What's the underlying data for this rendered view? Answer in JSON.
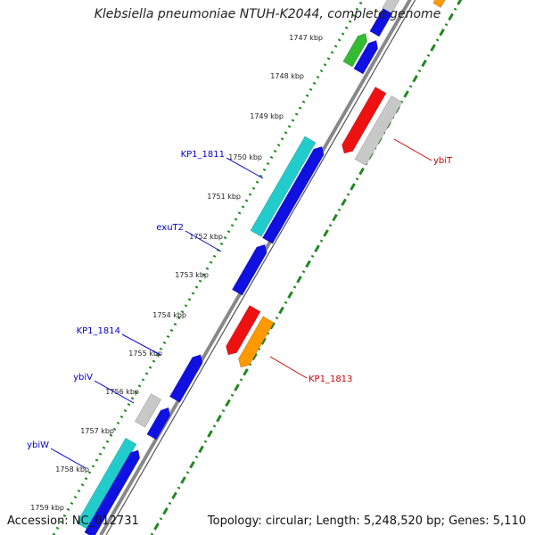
{
  "title": "Klebsiella pneumoniae NTUH-K2044, complete genome",
  "accession": "Accession: NC_012731",
  "summary": "Topology: circular; Length: 5,248,520 bp; Genes: 5,110",
  "kbp_ticks": [
    {
      "label": "1747 kbp"
    },
    {
      "label": "1748 kbp"
    },
    {
      "label": "1749 kbp"
    },
    {
      "label": "1750 kbp"
    },
    {
      "label": "1751 kbp"
    },
    {
      "label": "1752 kbp"
    },
    {
      "label": "1753 kbp"
    },
    {
      "label": "1754 kbp"
    },
    {
      "label": "1755 kbp"
    },
    {
      "label": "1756 kbp"
    },
    {
      "label": "1757 kbp"
    },
    {
      "label": "1758 kbp"
    },
    {
      "label": "1759 kbp"
    }
  ],
  "gene_labels": [
    {
      "label": "KP1_1811",
      "color": "#0000cc"
    },
    {
      "label": "exuT2",
      "color": "#0000cc"
    },
    {
      "label": "KP1_1814",
      "color": "#0000cc"
    },
    {
      "label": "ybiV",
      "color": "#0000cc"
    },
    {
      "label": "ybiW",
      "color": "#0000cc"
    },
    {
      "label": "ybiT",
      "color": "#cc0000"
    },
    {
      "label": "KP1_1813",
      "color": "#cc0000"
    }
  ],
  "colors": {
    "blue": "#1010e0",
    "cyan": "#22cccc",
    "red": "#ee1111",
    "orange": "#ff9900",
    "gray": "#c8c8c8",
    "green": "#33bb33",
    "backbone": "#888888",
    "dotted_track": "#228822"
  }
}
